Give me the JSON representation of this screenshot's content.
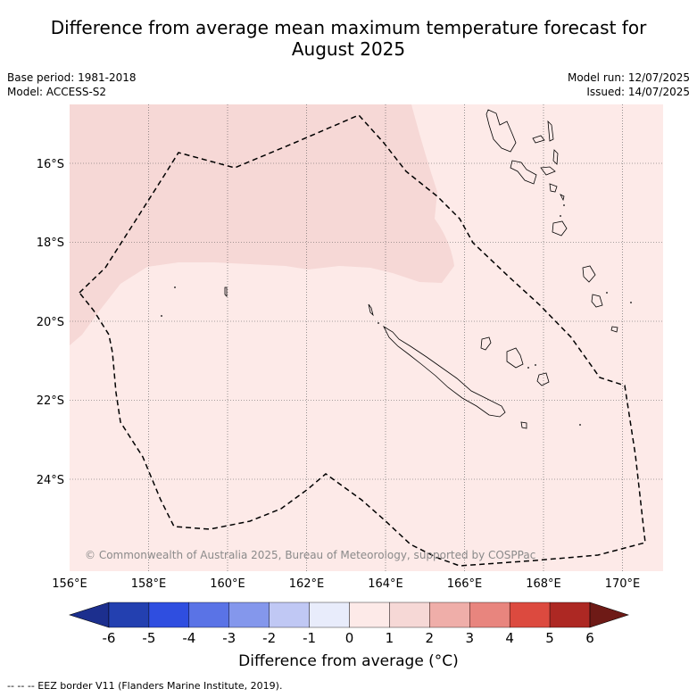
{
  "title": {
    "line1": "Difference from average mean maximum temperature forecast for",
    "line2": "August 2025"
  },
  "meta": {
    "base_period": "Base period: 1981-2018",
    "model": "Model: ACCESS-S2",
    "model_run": "Model run: 12/07/2025",
    "issued": "Issued: 14/07/2025"
  },
  "map": {
    "lon_ticks": [
      "156°E",
      "158°E",
      "160°E",
      "162°E",
      "164°E",
      "166°E",
      "168°E",
      "170°E"
    ],
    "lat_ticks": [
      "16°S",
      "18°S",
      "20°S",
      "22°S",
      "24°S"
    ],
    "copyright": "© Commonwealth of Australia 2025, Bureau of Meteorology, supported by COSPPac",
    "colors": {
      "anomaly_0_1": "#fdeae8",
      "anomaly_1_2": "#f6d8d6"
    }
  },
  "colorbar": {
    "ticks": [
      "-6",
      "-5",
      "-4",
      "-3",
      "-2",
      "-1",
      "0",
      "1",
      "2",
      "3",
      "4",
      "5",
      "6"
    ],
    "colors": [
      "#1c2f8e",
      "#2340b0",
      "#2f4ee0",
      "#5a73e6",
      "#8497ec",
      "#c0c8f4",
      "#e8ecfb",
      "#fdeae8",
      "#f6d8d6",
      "#efaea9",
      "#e8857e",
      "#dc4a3f",
      "#ad2823",
      "#6e1a16"
    ],
    "label": "Difference from average (°C)"
  },
  "footnote": "--  --  -- EEZ border V11 (Flanders Marine Institute, 2019)."
}
